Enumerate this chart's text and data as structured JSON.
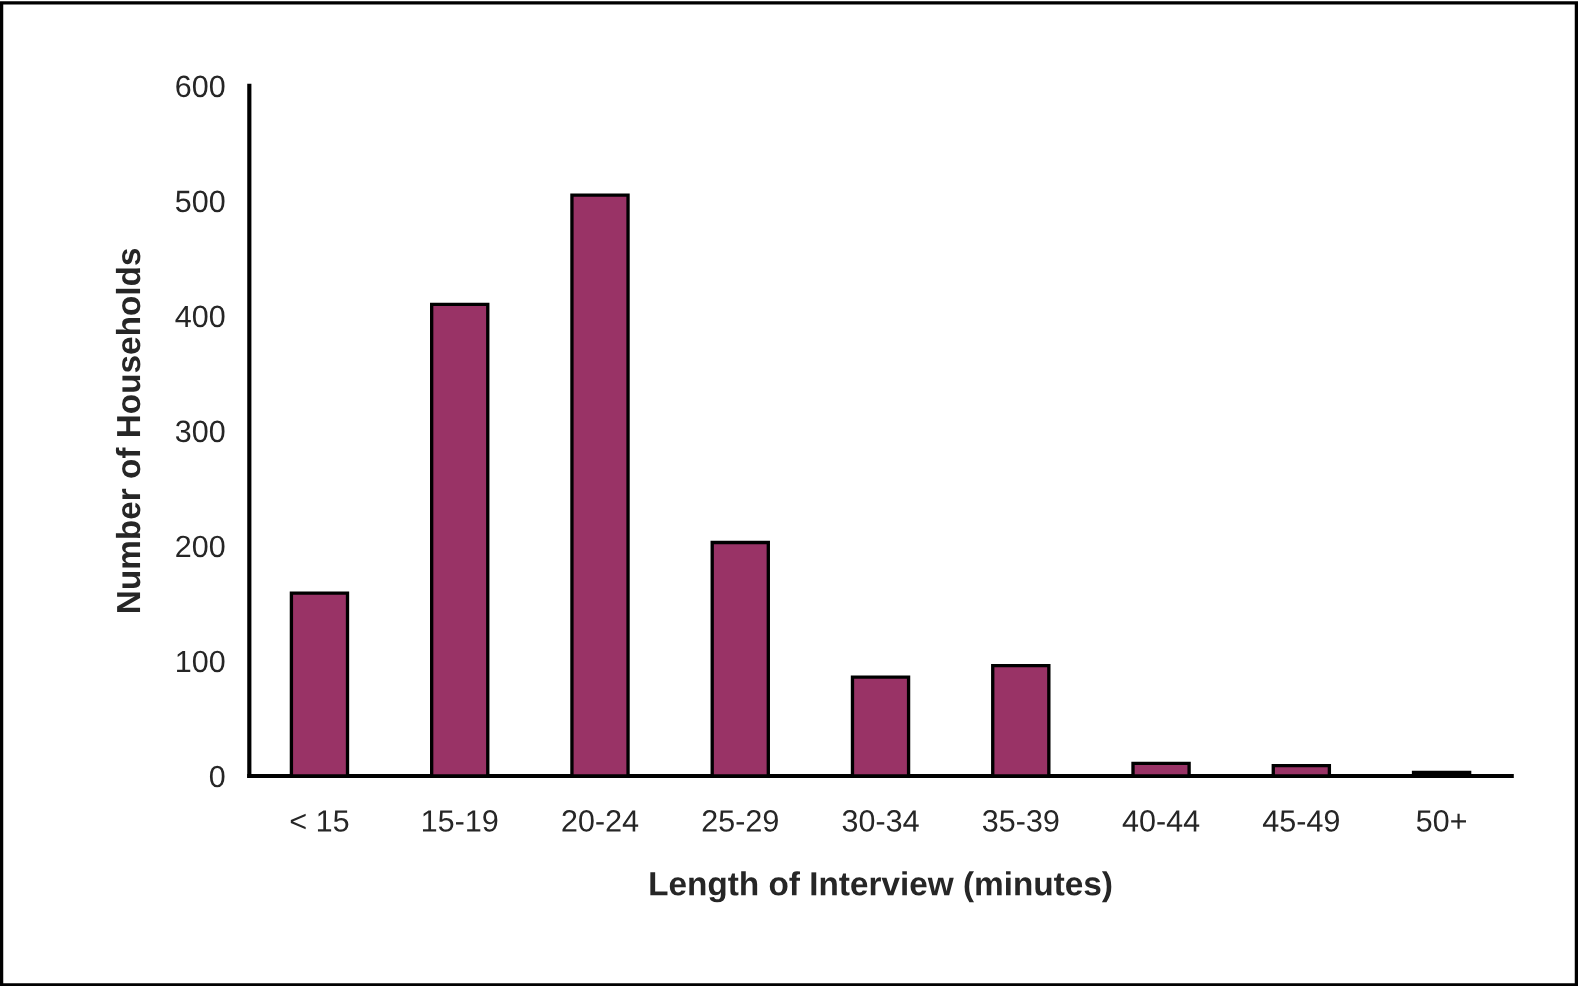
{
  "chart_data": {
    "type": "bar",
    "categories": [
      "< 15",
      "15-19",
      "20-24",
      "25-29",
      "30-34",
      "35-39",
      "40-44",
      "45-49",
      "50+"
    ],
    "values": [
      159,
      410,
      505,
      203,
      86,
      96,
      11,
      9,
      3
    ],
    "color": "#993366",
    "xlabel": "Length of Interview (minutes)",
    "ylabel": "Number of Households",
    "ylim": [
      0,
      600
    ],
    "yticks": [
      0,
      100,
      200,
      300,
      400,
      500,
      600
    ],
    "grid": false,
    "legend": false
  }
}
